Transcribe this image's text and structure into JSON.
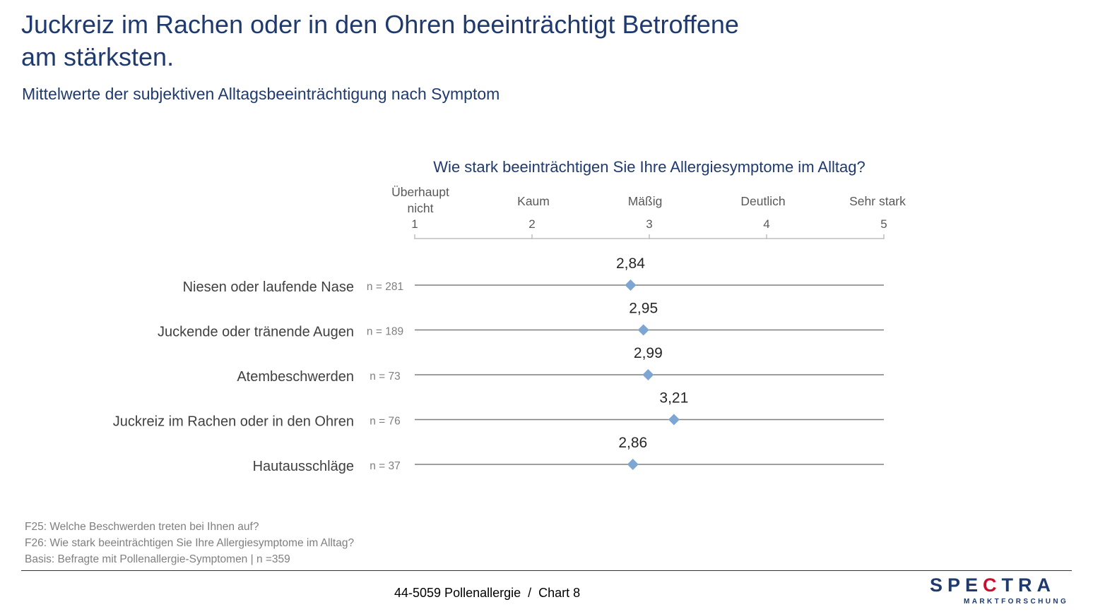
{
  "header": {
    "title_line1": "Juckreiz im Rachen oder in den Ohren beeinträchtigt Betroffene",
    "title_line2": "am stärksten.",
    "subtitle": "Mittelwerte der subjektiven Alltagsbeeinträchtigung nach Symptom"
  },
  "chart_data": {
    "type": "scatter",
    "title": "Wie stark beeinträchtigen Sie Ihre Allergiesymptome im Alltag?",
    "scale": {
      "min": 1,
      "max": 5,
      "ticks": [
        {
          "value": 1,
          "label": "1",
          "anchor": [
            "Überhaupt",
            "nicht"
          ]
        },
        {
          "value": 2,
          "label": "2",
          "anchor": [
            "Kaum"
          ]
        },
        {
          "value": 3,
          "label": "3",
          "anchor": [
            "Mäßig"
          ]
        },
        {
          "value": 4,
          "label": "4",
          "anchor": [
            "Deutlich"
          ]
        },
        {
          "value": 5,
          "label": "5",
          "anchor": [
            "Sehr stark"
          ]
        }
      ]
    },
    "categories": [
      "Niesen oder laufende Nase",
      "Juckende oder tränende Augen",
      "Atembeschwerden",
      "Juckreiz im Rachen oder in den Ohren",
      "Hautausschläge"
    ],
    "n_labels": [
      "n = 281",
      "n = 189",
      "n = 73",
      "n = 76",
      "n = 37"
    ],
    "values": [
      2.84,
      2.95,
      2.99,
      3.21,
      2.86
    ],
    "value_labels": [
      "2,84",
      "2,95",
      "2,99",
      "3,21",
      "2,86"
    ],
    "marker_color": "#7ea6d3",
    "line_color": "#7f7f7f"
  },
  "notes": {
    "q25": "F25: Welche Beschwerden treten bei Ihnen auf?",
    "q26": "F26: Wie stark beeinträchtigen Sie Ihre Allergiesymptome im Alltag?",
    "basis": "Basis: Befragte mit Pollenallergie-Symptomen | n =359"
  },
  "footer": {
    "text": "44-5059 Pollenallergie  /  Chart 8",
    "logo_main_a": "SPE",
    "logo_main_b": "C",
    "logo_main_c": "TRA",
    "logo_sub": "MARKTFORSCHUNG"
  }
}
